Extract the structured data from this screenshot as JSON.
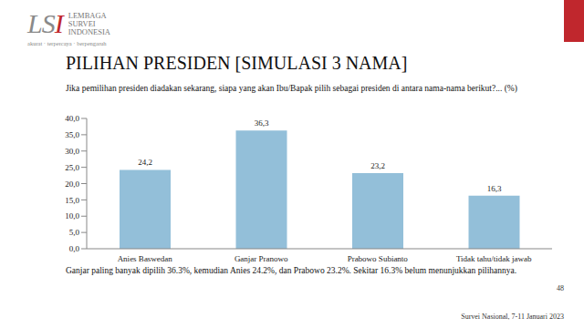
{
  "header": {
    "logo": "LSI",
    "org": [
      "LEMBAGA",
      "SURVEI",
      "INDONESIA"
    ],
    "tagline": "akurat · terpercaya · berpengaruh"
  },
  "chart_data": {
    "type": "bar",
    "title": "PILIHAN PRESIDEN [SIMULASI 3 NAMA]",
    "subtitle": "Jika pemilihan presiden diadakan sekarang, siapa yang akan Ibu/Bapak pilih sebagai presiden di antara nama-nama berikut?... (%)",
    "categories": [
      "Anies Baswedan",
      "Ganjar Pranowo",
      "Prabowo Subianto",
      "Tidak tahu/tidak jawab"
    ],
    "values": [
      24.2,
      36.3,
      23.2,
      16.3
    ],
    "value_labels": [
      "24,2",
      "36,3",
      "23,2",
      "16,3"
    ],
    "data_labels": true,
    "color": "#93bfd9",
    "ylim": [
      0,
      40
    ],
    "yticks": [
      {
        "value": 0,
        "label": "0,0"
      },
      {
        "value": 5,
        "label": "5,0"
      },
      {
        "value": 10,
        "label": "10,0"
      },
      {
        "value": 15,
        "label": "15,0"
      },
      {
        "value": 20,
        "label": "20,0"
      },
      {
        "value": 25,
        "label": "25,0"
      },
      {
        "value": 30,
        "label": "30,0"
      },
      {
        "value": 35,
        "label": "35,0"
      },
      {
        "value": 40,
        "label": "40,0"
      }
    ],
    "grid": false,
    "annotations": [
      "Ganjar paling banyak dipilih 36.3%, kemudian Anies 24.2%, dan Prabowo 23.2%. Sekitar 16.3% belum menunjukkan pilihannya."
    ]
  },
  "footer": {
    "page": "48",
    "source": "Survei Nasional, 7-11 Januari 2023"
  }
}
